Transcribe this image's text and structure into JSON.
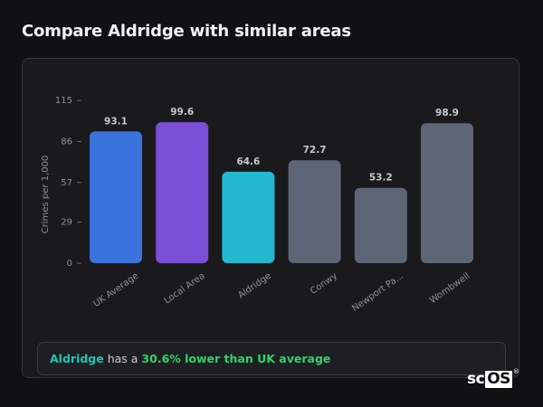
{
  "page": {
    "title": "Compare Aldridge with similar areas"
  },
  "summary": {
    "area": "Aldridge",
    "middle": " has a ",
    "diff": "30.6% lower than UK average"
  },
  "logo": {
    "text_plain": "sc",
    "text_boxed": "OS",
    "mark": "®"
  },
  "colors": {
    "uk_average": "#3a73db",
    "local_area": "#7b4fd6",
    "aldridge": "#22b9d1",
    "other": "#5d6677",
    "summary_area": "#20c4b4",
    "summary_diff": "#2fd36b"
  },
  "chart_data": {
    "type": "bar",
    "title": "",
    "xlabel": "",
    "ylabel": "Crimes per 1,000",
    "ylim": [
      0,
      115
    ],
    "yticks": [
      0,
      29,
      57,
      86,
      115
    ],
    "grid": false,
    "legend": "none",
    "categories": [
      "UK Average",
      "Local Area",
      "Aldridge",
      "Conwy",
      "Newport Pa...",
      "Wombwell"
    ],
    "values": [
      93.1,
      99.6,
      64.6,
      72.7,
      53.2,
      98.9
    ],
    "value_labels": [
      "93.1",
      "99.6",
      "64.6",
      "72.7",
      "53.2",
      "98.9"
    ],
    "bar_colors": [
      "#3a73db",
      "#7b4fd6",
      "#22b9d1",
      "#5d6677",
      "#5d6677",
      "#5d6677"
    ]
  }
}
